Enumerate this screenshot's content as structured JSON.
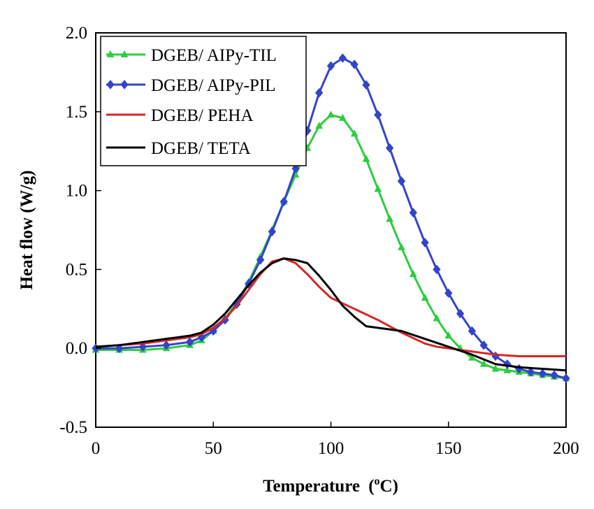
{
  "chart_data": {
    "type": "line",
    "title": "",
    "xlabel": "Temperature",
    "xlabel_unit_prefix": "(",
    "xlabel_unit_sup": "o",
    "xlabel_unit_suffix": "C)",
    "ylabel": "Heat flow (W/g)",
    "xlim": [
      0,
      200
    ],
    "ylim": [
      -0.5,
      2.0
    ],
    "xticks": [
      0,
      50,
      100,
      150,
      200
    ],
    "yticks": [
      -0.5,
      0.0,
      0.5,
      1.0,
      1.5,
      2.0
    ],
    "ytick_labels": [
      "-0.5",
      "0.0",
      "0.5",
      "1.0",
      "1.5",
      "2.0"
    ],
    "grid": false,
    "legend_position": "top-left",
    "series": [
      {
        "name": "DGEB/ AIPy-TIL",
        "color": "#2ecc40",
        "marker": "triangle",
        "x": [
          0,
          10,
          20,
          30,
          40,
          45,
          50,
          55,
          60,
          65,
          70,
          75,
          80,
          85,
          90,
          95,
          100,
          105,
          110,
          115,
          120,
          125,
          130,
          135,
          140,
          145,
          150,
          155,
          160,
          165,
          170,
          175,
          180,
          185,
          190,
          195,
          200
        ],
        "y": [
          -0.01,
          -0.01,
          -0.01,
          0.0,
          0.02,
          0.05,
          0.11,
          0.19,
          0.29,
          0.42,
          0.58,
          0.75,
          0.93,
          1.1,
          1.27,
          1.41,
          1.48,
          1.46,
          1.36,
          1.2,
          1.01,
          0.82,
          0.64,
          0.47,
          0.32,
          0.19,
          0.08,
          0.0,
          -0.06,
          -0.1,
          -0.13,
          -0.14,
          -0.15,
          -0.16,
          -0.17,
          -0.18,
          -0.19
        ]
      },
      {
        "name": "DGEB/ AIPy-PIL",
        "color": "#3344cc",
        "marker": "diamond",
        "x": [
          0,
          10,
          20,
          30,
          40,
          45,
          50,
          55,
          60,
          65,
          70,
          75,
          80,
          85,
          90,
          95,
          100,
          105,
          110,
          115,
          120,
          125,
          130,
          135,
          140,
          145,
          150,
          155,
          160,
          165,
          170,
          175,
          180,
          185,
          190,
          195,
          200
        ],
        "y": [
          0.0,
          0.0,
          0.01,
          0.02,
          0.04,
          0.07,
          0.11,
          0.18,
          0.28,
          0.41,
          0.56,
          0.74,
          0.93,
          1.14,
          1.38,
          1.62,
          1.79,
          1.84,
          1.8,
          1.67,
          1.48,
          1.27,
          1.06,
          0.86,
          0.67,
          0.5,
          0.35,
          0.22,
          0.11,
          0.02,
          -0.05,
          -0.1,
          -0.13,
          -0.15,
          -0.16,
          -0.17,
          -0.19
        ]
      },
      {
        "name": "DGEB/ PEHA",
        "color": "#d62728",
        "marker": "none",
        "x": [
          0,
          10,
          20,
          30,
          40,
          45,
          50,
          55,
          60,
          65,
          70,
          75,
          80,
          85,
          90,
          95,
          100,
          110,
          120,
          130,
          140,
          145,
          150,
          160,
          170,
          180,
          190,
          200
        ],
        "y": [
          0.01,
          0.02,
          0.03,
          0.05,
          0.07,
          0.09,
          0.13,
          0.19,
          0.27,
          0.37,
          0.47,
          0.55,
          0.57,
          0.54,
          0.47,
          0.39,
          0.32,
          0.25,
          0.18,
          0.1,
          0.03,
          0.01,
          0.0,
          -0.02,
          -0.04,
          -0.05,
          -0.05,
          -0.05
        ]
      },
      {
        "name": "DGEB/ TETA",
        "color": "#000000",
        "marker": "none",
        "x": [
          0,
          10,
          20,
          30,
          40,
          45,
          50,
          55,
          60,
          65,
          70,
          75,
          80,
          85,
          90,
          95,
          100,
          105,
          110,
          115,
          120,
          130,
          140,
          150,
          160,
          165,
          170,
          180,
          190,
          200
        ],
        "y": [
          0.01,
          0.02,
          0.04,
          0.06,
          0.08,
          0.1,
          0.15,
          0.22,
          0.31,
          0.4,
          0.48,
          0.54,
          0.57,
          0.56,
          0.54,
          0.46,
          0.37,
          0.27,
          0.2,
          0.14,
          0.13,
          0.11,
          0.06,
          0.01,
          -0.04,
          -0.07,
          -0.1,
          -0.12,
          -0.13,
          -0.14
        ]
      }
    ]
  }
}
